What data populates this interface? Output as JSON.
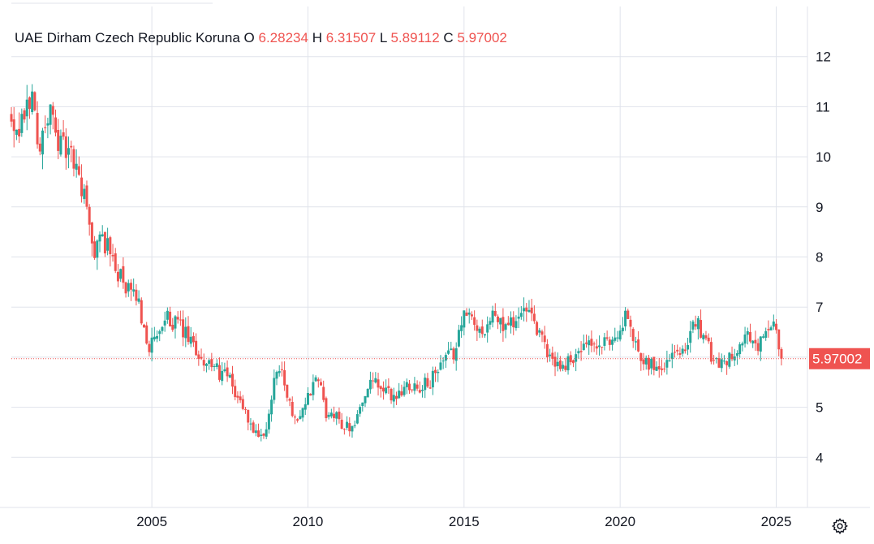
{
  "legend": {
    "symbol": "UAE Dirham Czech Republic Koruna",
    "o_label": "O",
    "o_value": "6.28234",
    "h_label": "H",
    "h_value": "6.31507",
    "l_label": "L",
    "l_value": "5.89112",
    "c_label": "C",
    "c_value": "5.97002"
  },
  "last_price_label": "5.97002",
  "settings_icon": "gear-icon",
  "colors": {
    "up": "#26a69a",
    "down": "#ef5350",
    "grid": "#e0e3eb",
    "text": "#131722"
  },
  "chart_data": {
    "type": "candlestick",
    "title": "",
    "xlabel": "",
    "ylabel": "",
    "ylim": [
      3.0,
      13.0
    ],
    "xlim": [
      2000.5,
      2026.0
    ],
    "y_ticks": [
      "4",
      "5",
      "6",
      "7",
      "8",
      "9",
      "10",
      "11",
      "12"
    ],
    "x_ticks": [
      "2005",
      "2010",
      "2015",
      "2020",
      "2025"
    ],
    "grid": true,
    "last_close": 5.97002,
    "price_path": [
      [
        2000.5,
        10.9
      ],
      [
        2000.7,
        10.2
      ],
      [
        2001.0,
        10.8
      ],
      [
        2001.2,
        11.3
      ],
      [
        2001.5,
        10.2
      ],
      [
        2001.8,
        10.9
      ],
      [
        2002.0,
        10.5
      ],
      [
        2002.2,
        10.2
      ],
      [
        2002.5,
        10.0
      ],
      [
        2002.8,
        9.5
      ],
      [
        2003.0,
        8.9
      ],
      [
        2003.2,
        8.1
      ],
      [
        2003.5,
        8.4
      ],
      [
        2003.8,
        8.0
      ],
      [
        2004.0,
        7.7
      ],
      [
        2004.3,
        7.3
      ],
      [
        2004.6,
        7.2
      ],
      [
        2005.0,
        6.2
      ],
      [
        2005.3,
        6.4
      ],
      [
        2005.6,
        6.8
      ],
      [
        2005.8,
        6.7
      ],
      [
        2006.1,
        6.5
      ],
      [
        2006.5,
        6.1
      ],
      [
        2007.0,
        5.8
      ],
      [
        2007.5,
        5.6
      ],
      [
        2008.0,
        5.0
      ],
      [
        2008.5,
        4.3
      ],
      [
        2008.75,
        4.5
      ],
      [
        2009.0,
        5.6
      ],
      [
        2009.2,
        5.9
      ],
      [
        2009.5,
        5.0
      ],
      [
        2009.8,
        4.8
      ],
      [
        2010.0,
        5.1
      ],
      [
        2010.4,
        5.6
      ],
      [
        2010.7,
        4.8
      ],
      [
        2011.0,
        4.8
      ],
      [
        2011.3,
        4.6
      ],
      [
        2011.6,
        4.7
      ],
      [
        2011.9,
        5.3
      ],
      [
        2012.2,
        5.5
      ],
      [
        2012.5,
        5.3
      ],
      [
        2012.9,
        5.2
      ],
      [
        2013.3,
        5.5
      ],
      [
        2013.7,
        5.4
      ],
      [
        2014.0,
        5.5
      ],
      [
        2014.4,
        5.9
      ],
      [
        2014.8,
        6.1
      ],
      [
        2015.0,
        6.8
      ],
      [
        2015.3,
        6.8
      ],
      [
        2015.6,
        6.5
      ],
      [
        2016.0,
        6.8
      ],
      [
        2016.4,
        6.6
      ],
      [
        2016.8,
        6.8
      ],
      [
        2017.0,
        6.9
      ],
      [
        2017.4,
        6.6
      ],
      [
        2017.8,
        6.0
      ],
      [
        2018.2,
        5.8
      ],
      [
        2018.6,
        6.0
      ],
      [
        2019.0,
        6.2
      ],
      [
        2019.5,
        6.2
      ],
      [
        2019.9,
        6.4
      ],
      [
        2020.1,
        6.6
      ],
      [
        2020.3,
        6.8
      ],
      [
        2020.6,
        6.2
      ],
      [
        2021.0,
        5.9
      ],
      [
        2021.3,
        5.8
      ],
      [
        2021.7,
        6.0
      ],
      [
        2022.0,
        6.2
      ],
      [
        2022.3,
        6.3
      ],
      [
        2022.5,
        6.7
      ],
      [
        2022.75,
        6.5
      ],
      [
        2023.0,
        6.0
      ],
      [
        2023.4,
        5.9
      ],
      [
        2023.8,
        6.2
      ],
      [
        2024.1,
        6.4
      ],
      [
        2024.5,
        6.2
      ],
      [
        2024.8,
        6.5
      ],
      [
        2025.0,
        6.6
      ],
      [
        2025.1,
        6.4
      ],
      [
        2025.22,
        5.97
      ]
    ]
  }
}
